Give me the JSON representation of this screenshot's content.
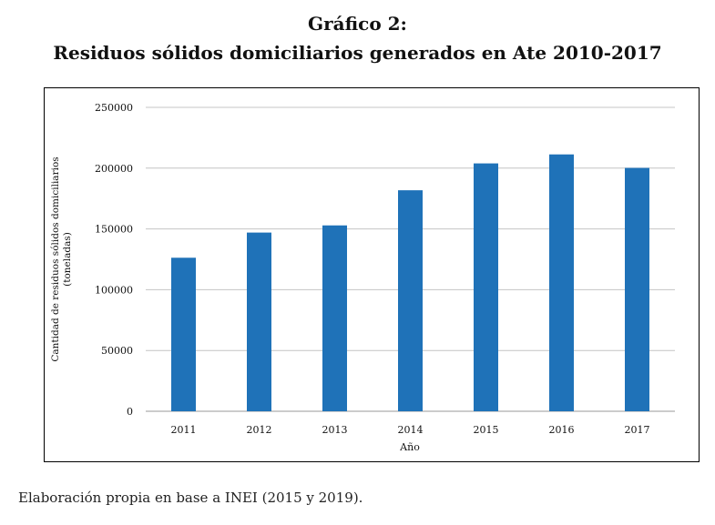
{
  "title_line1": "Gráfico 2:",
  "title_line2": "Residuos sólidos domiciliarios generados en Ate 2010-2017",
  "footer": "Elaboración propia en base a INEI (2015 y 2019).",
  "chart_data": {
    "type": "bar",
    "title": "Residuos sólidos domiciliarios generados en Ate 2010-2017",
    "categories": [
      "2011",
      "2012",
      "2013",
      "2014",
      "2015",
      "2016",
      "2017"
    ],
    "values": [
      126300,
      147000,
      152900,
      181800,
      203900,
      211300,
      200200
    ],
    "xlabel": "Año",
    "ylabel": "Cantidad de residuos sólidos domiciliarios",
    "ylabel2": "(toneladas)",
    "ylim": [
      0,
      250000
    ],
    "yticks": [
      "0",
      "50000",
      "100000",
      "150000",
      "200000",
      "250000"
    ],
    "grid": true,
    "bar_color": "#1f72b8"
  }
}
